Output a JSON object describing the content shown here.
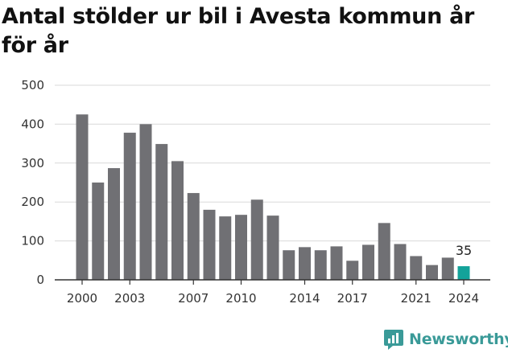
{
  "title": "Antal stölder ur bil i Avesta kommun år för år",
  "brand": "Newsworthy",
  "colors": {
    "bar": "#707074",
    "highlight": "#13a39a",
    "grid": "#d9d9d9",
    "brand": "#3a9a98"
  },
  "chart_data": {
    "type": "bar",
    "title": "Antal stölder ur bil i Avesta kommun år för år",
    "categories": [
      "2000",
      "2001",
      "2002",
      "2003",
      "2004",
      "2005",
      "2006",
      "2007",
      "2008",
      "2009",
      "2010",
      "2011",
      "2012",
      "2013",
      "2014",
      "2015",
      "2016",
      "2017",
      "2018",
      "2019",
      "2020",
      "2021",
      "2022",
      "2023",
      "2024"
    ],
    "values": [
      425,
      250,
      287,
      378,
      400,
      349,
      305,
      223,
      180,
      163,
      167,
      206,
      165,
      76,
      84,
      76,
      86,
      49,
      90,
      146,
      92,
      61,
      38,
      57,
      35
    ],
    "xticks": [
      "2000",
      "2003",
      "2007",
      "2010",
      "2014",
      "2017",
      "2021",
      "2024"
    ],
    "yticks": [
      "0",
      "100",
      "200",
      "300",
      "400",
      "500"
    ],
    "ylim": [
      0,
      500
    ],
    "highlight_index": 24,
    "data_labels": [
      {
        "index": 24,
        "text": "35"
      }
    ],
    "xlabel": "",
    "ylabel": "",
    "grid": true
  }
}
